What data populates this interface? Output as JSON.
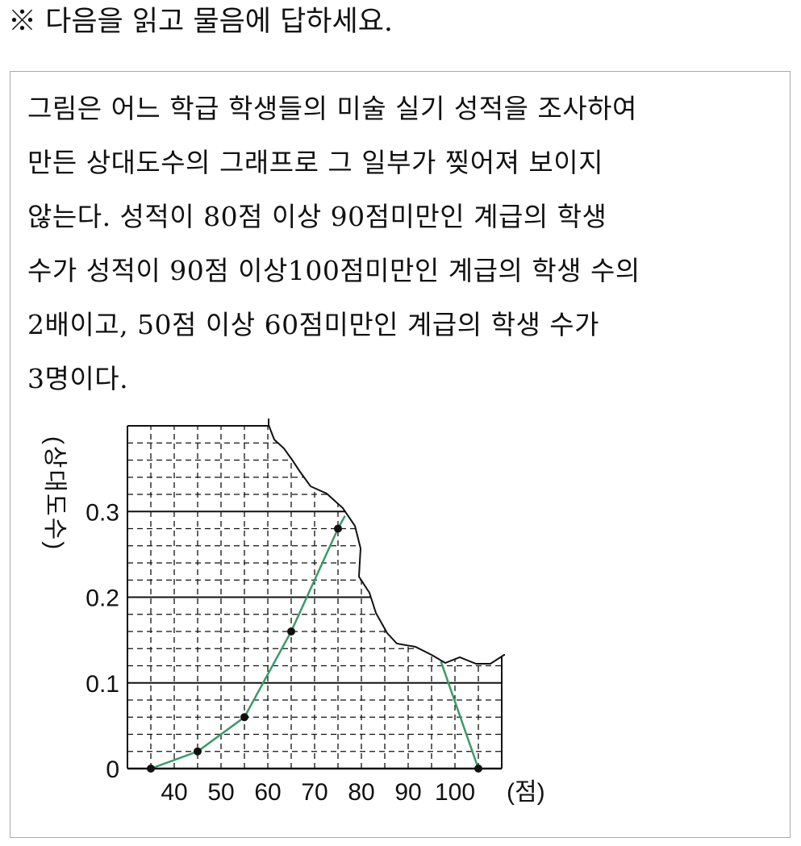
{
  "header": {
    "title": "※ 다음을 읽고 물음에 답하세요."
  },
  "problem": {
    "lines": [
      "그림은 어느 학급 학생들의 미술 실기 성적을 조사하여",
      "만든 상대도수의 그래프로 그 일부가 찢어져 보이지",
      "않는다. 성적이 80점 이상 90점미만인 계급의 학생",
      "수가 성적이 90점 이상100점미만인 계급의 학생 수의",
      "2배이고, 50점 이상 60점미만인 계급의 학생 수가",
      "3명이다."
    ]
  },
  "chart_data": {
    "type": "line",
    "title": "",
    "ylabel": "(상대도수)",
    "xlabel": "(점)",
    "xlim": [
      30,
      110
    ],
    "ylim": [
      0,
      0.4
    ],
    "x_ticks": [
      "40",
      "50",
      "60",
      "70",
      "80",
      "90",
      "100"
    ],
    "y_ticks": [
      "0",
      "0.1",
      "0.2",
      "0.3"
    ],
    "grid": true,
    "visible_points": [
      {
        "x": 35,
        "y": 0
      },
      {
        "x": 45,
        "y": 0.02
      },
      {
        "x": 55,
        "y": 0.06
      },
      {
        "x": 65,
        "y": 0.16
      },
      {
        "x": 75,
        "y": 0.28
      },
      {
        "x": 105,
        "y": 0
      }
    ],
    "torn_region": "upper right (x ≥ 60), values for 85 and 95 hidden",
    "line_color": "#3a9a6a"
  }
}
